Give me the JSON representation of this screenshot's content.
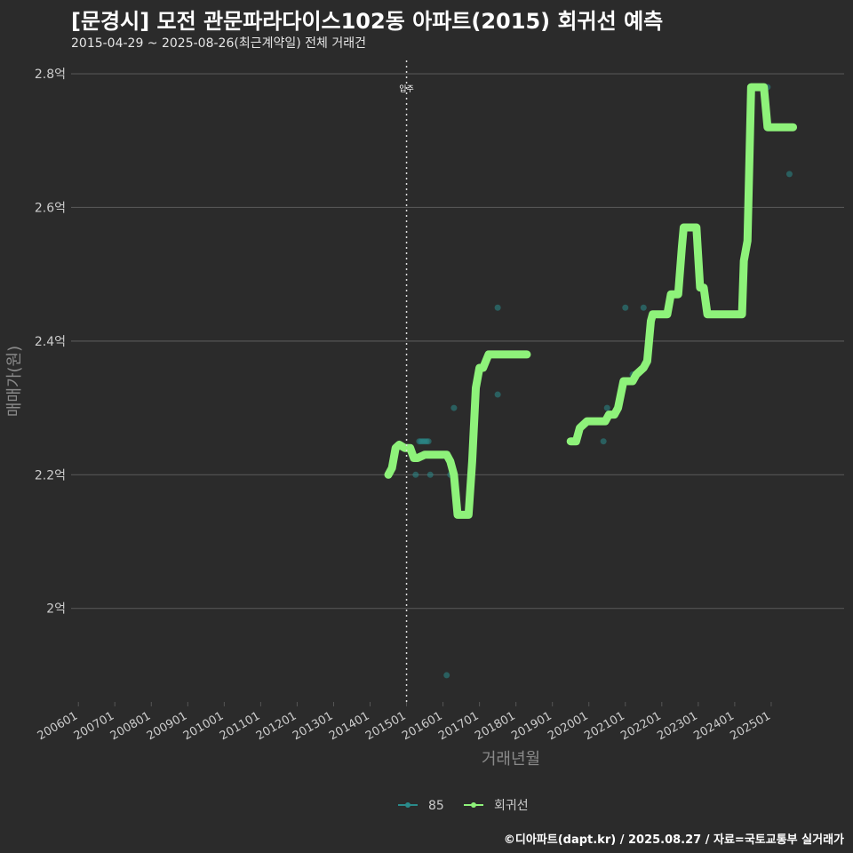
{
  "title": "[문경시] 모전 관문파라다이스102동 아파트(2015) 회귀선 예측",
  "subtitle": "2015-04-29 ~ 2025-08-26(최근계약일) 전체 거래건",
  "caption": "©디아파트(dapt.kr) / 2025.08.27 / 자료=국토교통부 실거래가",
  "colors": {
    "background": "#2b2b2b",
    "grid": "#555555",
    "area85": "#2a8a8a",
    "regression": "#8ef27a",
    "text": "#cccccc"
  },
  "chart_data": {
    "type": "line",
    "xlabel": "거래년월",
    "ylabel": "매매가(원)",
    "x_domain": [
      2005.8,
      2027.0
    ],
    "ylim": [
      1.86,
      2.82
    ],
    "y_ticks": [
      {
        "value": 2.0,
        "label": "2억"
      },
      {
        "value": 2.2,
        "label": "2.2억"
      },
      {
        "value": 2.4,
        "label": "2.4억"
      },
      {
        "value": 2.6,
        "label": "2.6억"
      },
      {
        "value": 2.8,
        "label": "2.8억"
      }
    ],
    "x_ticks": [
      {
        "value": 2006.0,
        "label": "200601"
      },
      {
        "value": 2007.0,
        "label": "200701"
      },
      {
        "value": 2008.0,
        "label": "200801"
      },
      {
        "value": 2009.0,
        "label": "200901"
      },
      {
        "value": 2010.0,
        "label": "201001"
      },
      {
        "value": 2011.0,
        "label": "201101"
      },
      {
        "value": 2012.0,
        "label": "201201"
      },
      {
        "value": 2013.0,
        "label": "201301"
      },
      {
        "value": 2014.0,
        "label": "201401"
      },
      {
        "value": 2015.0,
        "label": "201501"
      },
      {
        "value": 2016.0,
        "label": "201601"
      },
      {
        "value": 2017.0,
        "label": "201701"
      },
      {
        "value": 2018.0,
        "label": "201801"
      },
      {
        "value": 2019.0,
        "label": "201901"
      },
      {
        "value": 2020.0,
        "label": "202001"
      },
      {
        "value": 2021.0,
        "label": "202101"
      },
      {
        "value": 2022.0,
        "label": "202201"
      },
      {
        "value": 2023.0,
        "label": "202301"
      },
      {
        "value": 2024.0,
        "label": "202401"
      },
      {
        "value": 2025.0,
        "label": "202501"
      }
    ],
    "annotation": {
      "x": 2015.0,
      "label": "입주"
    },
    "legend": [
      {
        "name": "85",
        "color": "#2a8a8a"
      },
      {
        "name": "회귀선",
        "color": "#8ef27a"
      }
    ],
    "scatter": [
      {
        "x": 2015.25,
        "y": 2.2
      },
      {
        "x": 2015.35,
        "y": 2.25
      },
      {
        "x": 2015.4,
        "y": 2.25
      },
      {
        "x": 2015.45,
        "y": 2.25
      },
      {
        "x": 2015.5,
        "y": 2.25
      },
      {
        "x": 2015.55,
        "y": 2.25
      },
      {
        "x": 2015.6,
        "y": 2.25
      },
      {
        "x": 2015.65,
        "y": 2.2
      },
      {
        "x": 2016.1,
        "y": 1.9
      },
      {
        "x": 2016.2,
        "y": 2.2
      },
      {
        "x": 2016.3,
        "y": 2.3
      },
      {
        "x": 2017.5,
        "y": 2.45
      },
      {
        "x": 2017.5,
        "y": 2.32
      },
      {
        "x": 2020.4,
        "y": 2.25
      },
      {
        "x": 2020.5,
        "y": 2.3
      },
      {
        "x": 2021.0,
        "y": 2.45
      },
      {
        "x": 2021.2,
        "y": 2.35
      },
      {
        "x": 2021.5,
        "y": 2.45
      },
      {
        "x": 2024.9,
        "y": 2.78
      },
      {
        "x": 2025.5,
        "y": 2.65
      }
    ],
    "series": [
      {
        "name": "회귀선",
        "segment": 1,
        "x": [
          2014.5,
          2014.6,
          2014.7,
          2014.8,
          2014.95,
          2015.1,
          2015.2,
          2015.3,
          2015.5,
          2015.7,
          2015.85,
          2016.0,
          2016.1,
          2016.2,
          2016.3,
          2016.4,
          2016.5,
          2016.7,
          2016.8,
          2016.9,
          2017.0,
          2017.1,
          2017.25,
          2017.35,
          2018.3
        ],
        "y": [
          2.2,
          2.21,
          2.24,
          2.245,
          2.24,
          2.24,
          2.225,
          2.225,
          2.23,
          2.23,
          2.23,
          2.23,
          2.23,
          2.22,
          2.2,
          2.14,
          2.14,
          2.14,
          2.22,
          2.33,
          2.36,
          2.36,
          2.38,
          2.38,
          2.38
        ]
      },
      {
        "name": "회귀선",
        "segment": 2,
        "x": [
          2019.5,
          2019.65,
          2019.75,
          2019.95,
          2020.25,
          2020.45,
          2020.55,
          2020.7,
          2020.8,
          2020.95,
          2021.1,
          2021.2,
          2021.3,
          2021.5,
          2021.6,
          2021.7,
          2021.75,
          2022.15,
          2022.25,
          2022.45,
          2022.55,
          2022.6,
          2022.85,
          2022.95,
          2023.05,
          2023.15,
          2023.25,
          2024.1,
          2024.2,
          2024.25,
          2024.35,
          2024.45,
          2024.8,
          2024.9,
          2025.6
        ],
        "y": [
          2.25,
          2.25,
          2.27,
          2.28,
          2.28,
          2.28,
          2.29,
          2.29,
          2.3,
          2.34,
          2.34,
          2.34,
          2.35,
          2.36,
          2.37,
          2.43,
          2.44,
          2.44,
          2.47,
          2.47,
          2.54,
          2.57,
          2.57,
          2.57,
          2.48,
          2.48,
          2.44,
          2.44,
          2.44,
          2.52,
          2.55,
          2.78,
          2.78,
          2.72,
          2.72
        ]
      }
    ]
  }
}
